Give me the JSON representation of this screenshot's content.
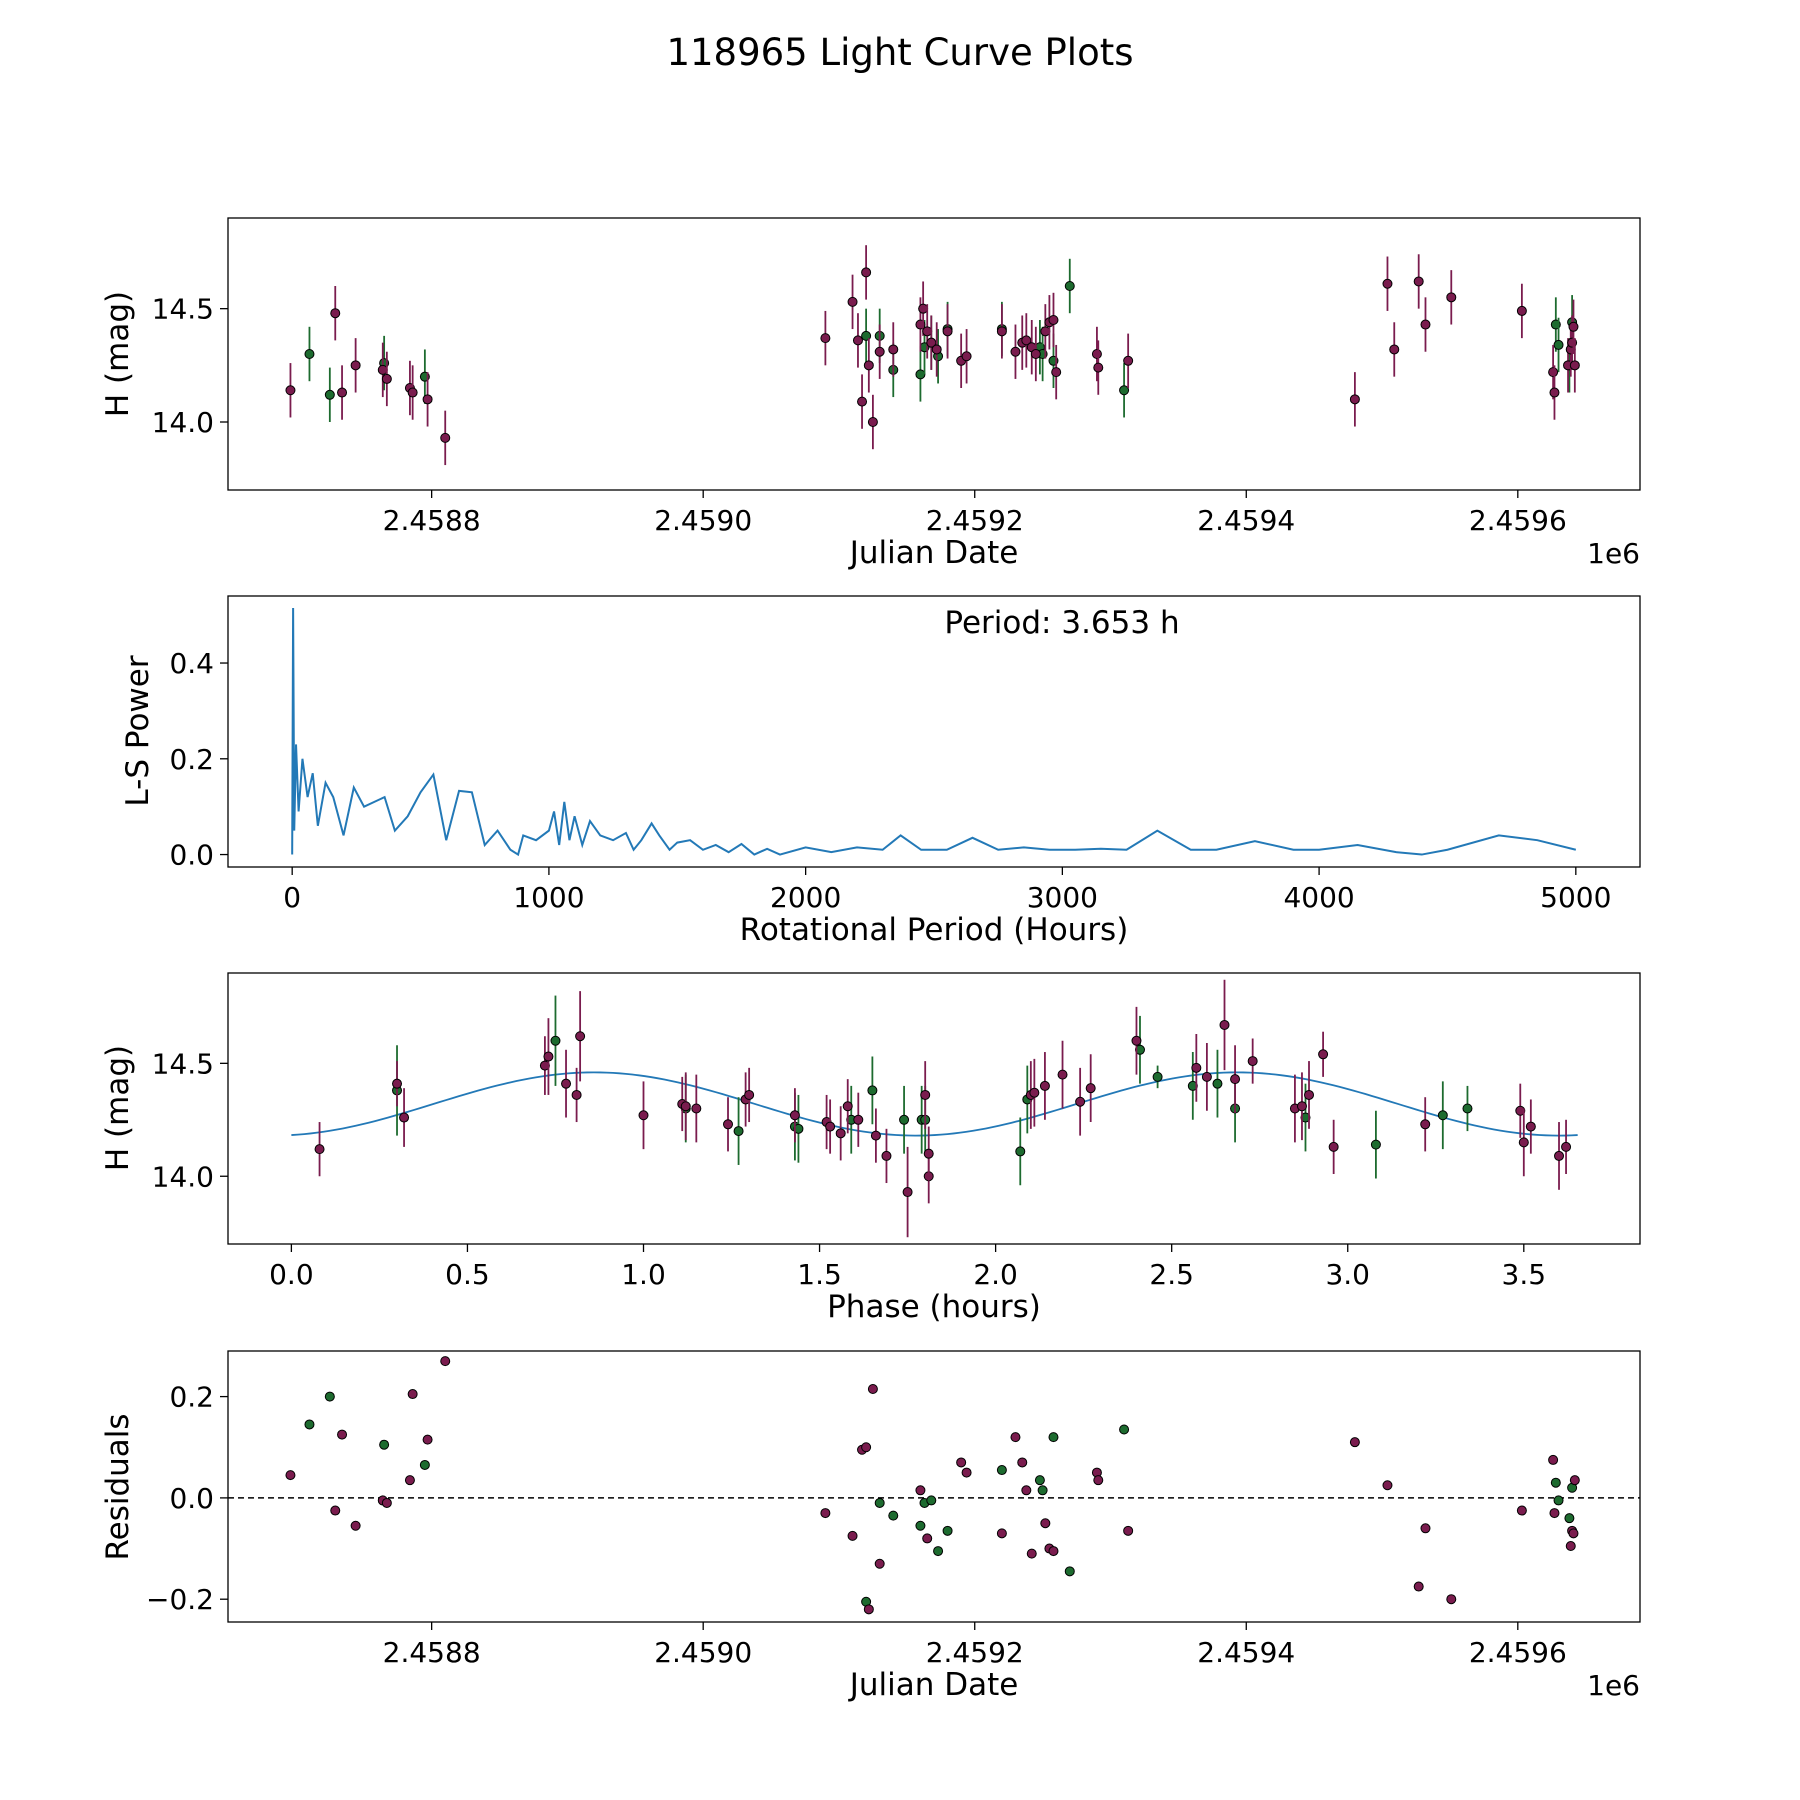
{
  "figure_title": "118965 Light Curve Plots",
  "colors": {
    "g_band": "#1d6b2f",
    "o_band": "#7a1c4e",
    "curve": "#2379b7",
    "dashed": "#000000"
  },
  "chart_data": [
    {
      "id": "lc",
      "type": "scatter",
      "title": "",
      "xlabel": "Julian Date",
      "ylabel": "H (mag)",
      "x_offset_label": "1e6",
      "xlim": [
        2.45865,
        2.45969
      ],
      "ylim": [
        13.7,
        14.9
      ],
      "xticks": [
        2.4588,
        2.459,
        2.4592,
        2.4594,
        2.4596
      ],
      "xtick_labels": [
        "2.4588",
        "2.4590",
        "2.4592",
        "2.4594",
        "2.4596"
      ],
      "yticks": [
        14.0,
        14.5
      ],
      "ytick_labels": [
        "14.0",
        "14.5"
      ],
      "err": 0.12,
      "series": [
        {
          "name": "green",
          "color_key": "g_band",
          "x": [
            2.45871,
            2.458725,
            2.458765,
            2.458795,
            2.45912,
            2.45913,
            2.45914,
            2.45916,
            2.459163,
            2.459168,
            2.459173,
            2.45918,
            2.45922,
            2.459248,
            2.45925,
            2.459258,
            2.45927,
            2.45931,
            2.459628,
            2.45963,
            2.459638,
            2.45964
          ],
          "y": [
            14.3,
            14.12,
            14.26,
            14.2,
            14.38,
            14.38,
            14.23,
            14.21,
            14.33,
            14.35,
            14.29,
            14.41,
            14.41,
            14.33,
            14.3,
            14.27,
            14.6,
            14.14,
            14.43,
            14.34,
            14.25,
            14.44
          ]
        },
        {
          "name": "purple",
          "color_key": "o_band",
          "x": [
            2.458696,
            2.458729,
            2.458734,
            2.458744,
            2.458764,
            2.458767,
            2.458784,
            2.458786,
            2.458797,
            2.45881,
            2.45909,
            2.45911,
            2.459114,
            2.459117,
            2.45912,
            2.459122,
            2.459125,
            2.45913,
            2.45914,
            2.45916,
            2.459162,
            2.459165,
            2.459168,
            2.459172,
            2.45918,
            2.45919,
            2.459194,
            2.45922,
            2.45923,
            2.459235,
            2.459238,
            2.459242,
            2.459245,
            2.459252,
            2.459255,
            2.459258,
            2.45926,
            2.45929,
            2.459291,
            2.459313,
            2.45948,
            2.459504,
            2.459509,
            2.459527,
            2.459532,
            2.459551,
            2.459603,
            2.459626,
            2.459627,
            2.459637,
            2.459639,
            2.45964,
            2.459641,
            2.459642
          ],
          "y": [
            14.14,
            14.48,
            14.13,
            14.25,
            14.23,
            14.19,
            14.15,
            14.13,
            14.1,
            13.93,
            14.37,
            14.53,
            14.36,
            14.09,
            14.66,
            14.25,
            14.0,
            14.31,
            14.32,
            14.43,
            14.5,
            14.4,
            14.35,
            14.32,
            14.4,
            14.27,
            14.29,
            14.4,
            14.31,
            14.35,
            14.36,
            14.33,
            14.3,
            14.4,
            14.44,
            14.45,
            14.22,
            14.3,
            14.24,
            14.27,
            14.1,
            14.61,
            14.32,
            14.62,
            14.43,
            14.55,
            14.49,
            14.22,
            14.13,
            14.25,
            14.32,
            14.35,
            14.42,
            14.25
          ]
        }
      ]
    },
    {
      "id": "ls",
      "type": "line",
      "title": "",
      "xlabel": "Rotational Period (Hours)",
      "ylabel": "L-S Power",
      "annotation": "Period: 3.653 h",
      "xlim": [
        -250,
        5250
      ],
      "ylim": [
        -0.026,
        0.54
      ],
      "xticks": [
        0,
        1000,
        2000,
        3000,
        4000,
        5000
      ],
      "xtick_labels": [
        "0",
        "1000",
        "2000",
        "3000",
        "4000",
        "5000"
      ],
      "yticks": [
        0.0,
        0.2,
        0.4
      ],
      "ytick_labels": [
        "0.0",
        "0.2",
        "0.4"
      ],
      "series": [
        {
          "name": "L-S periodogram",
          "x": [
            0,
            3.6,
            8,
            15,
            25,
            40,
            60,
            80,
            100,
            130,
            160,
            200,
            240,
            280,
            320,
            360,
            400,
            450,
            500,
            550,
            600,
            650,
            700,
            750,
            800,
            850,
            880,
            900,
            950,
            1000,
            1020,
            1040,
            1060,
            1080,
            1100,
            1130,
            1160,
            1200,
            1250,
            1300,
            1330,
            1360,
            1400,
            1430,
            1470,
            1500,
            1550,
            1600,
            1650,
            1700,
            1750,
            1800,
            1850,
            1900,
            2000,
            2100,
            2200,
            2300,
            2370,
            2450,
            2550,
            2650,
            2750,
            2850,
            2950,
            3050,
            3150,
            3250,
            3370,
            3500,
            3600,
            3750,
            3900,
            4000,
            4150,
            4300,
            4400,
            4500,
            4700,
            4850,
            5000
          ],
          "y": [
            0.0,
            0.515,
            0.05,
            0.23,
            0.09,
            0.2,
            0.12,
            0.17,
            0.06,
            0.15,
            0.12,
            0.04,
            0.14,
            0.1,
            0.11,
            0.12,
            0.05,
            0.08,
            0.13,
            0.167,
            0.03,
            0.133,
            0.13,
            0.02,
            0.05,
            0.01,
            0.0,
            0.04,
            0.03,
            0.05,
            0.09,
            0.02,
            0.11,
            0.03,
            0.08,
            0.02,
            0.07,
            0.04,
            0.03,
            0.045,
            0.01,
            0.03,
            0.065,
            0.04,
            0.01,
            0.025,
            0.03,
            0.01,
            0.02,
            0.005,
            0.022,
            0.0,
            0.012,
            0.0,
            0.015,
            0.005,
            0.015,
            0.01,
            0.04,
            0.01,
            0.01,
            0.035,
            0.01,
            0.015,
            0.01,
            0.01,
            0.012,
            0.01,
            0.05,
            0.01,
            0.01,
            0.028,
            0.01,
            0.01,
            0.02,
            0.005,
            0.0,
            0.01,
            0.04,
            0.03,
            0.01
          ]
        }
      ]
    },
    {
      "id": "phase",
      "type": "scatter",
      "title": "",
      "xlabel": "Phase (hours)",
      "ylabel": "H (mag)",
      "xlim": [
        -0.18,
        3.83
      ],
      "ylim": [
        13.7,
        14.9
      ],
      "xticks": [
        0.0,
        0.5,
        1.0,
        1.5,
        2.0,
        2.5,
        3.0,
        3.5
      ],
      "xtick_labels": [
        "0.0",
        "0.5",
        "1.0",
        "1.5",
        "2.0",
        "2.5",
        "3.0",
        "3.5"
      ],
      "yticks": [
        14.0,
        14.5
      ],
      "ytick_labels": [
        "14.0",
        "14.5"
      ],
      "err": 0.12,
      "fit": {
        "period": 3.653,
        "mean": 14.32,
        "amp": 0.14,
        "phase_offset": 0.86
      },
      "series": [
        {
          "name": "green",
          "color_key": "g_band",
          "x": [
            0.3,
            0.75,
            1.12,
            1.27,
            1.43,
            1.44,
            1.59,
            1.65,
            1.74,
            1.79,
            1.8,
            2.07,
            2.09,
            2.41,
            2.46,
            2.56,
            2.63,
            2.68,
            2.88,
            3.08,
            3.27,
            3.34
          ],
          "y": [
            14.38,
            14.6,
            14.3,
            14.2,
            14.22,
            14.21,
            14.25,
            14.38,
            14.25,
            14.25,
            14.25,
            14.11,
            14.34,
            14.56,
            14.44,
            14.4,
            14.41,
            14.3,
            14.26,
            14.14,
            14.27,
            14.3
          ],
          "err": [
            0.2,
            0.2,
            0.15,
            0.15,
            0.15,
            0.15,
            0.15,
            0.15,
            0.15,
            0.15,
            0.15,
            0.15,
            0.15,
            0.15,
            0.05,
            0.15,
            0.15,
            0.15,
            0.15,
            0.15,
            0.15,
            0.1
          ]
        },
        {
          "name": "purple",
          "color_key": "o_band",
          "x": [
            0.08,
            0.3,
            0.32,
            0.72,
            0.73,
            0.78,
            0.81,
            0.82,
            1.0,
            1.11,
            1.12,
            1.15,
            1.24,
            1.29,
            1.3,
            1.43,
            1.52,
            1.53,
            1.56,
            1.58,
            1.61,
            1.66,
            1.69,
            1.75,
            1.8,
            1.81,
            1.81,
            2.1,
            2.11,
            2.14,
            2.19,
            2.24,
            2.27,
            2.4,
            2.57,
            2.6,
            2.65,
            2.68,
            2.73,
            2.85,
            2.87,
            2.89,
            2.93,
            2.96,
            3.22,
            3.49,
            3.5,
            3.52,
            3.6,
            3.62
          ],
          "y": [
            14.12,
            14.41,
            14.26,
            14.49,
            14.53,
            14.41,
            14.36,
            14.62,
            14.27,
            14.32,
            14.31,
            14.3,
            14.23,
            14.34,
            14.36,
            14.27,
            14.24,
            14.22,
            14.19,
            14.31,
            14.25,
            14.18,
            14.09,
            13.93,
            14.36,
            14.0,
            14.1,
            14.36,
            14.37,
            14.4,
            14.45,
            14.33,
            14.39,
            14.6,
            14.48,
            14.44,
            14.67,
            14.43,
            14.51,
            14.3,
            14.31,
            14.36,
            14.54,
            14.13,
            14.23,
            14.29,
            14.15,
            14.22,
            14.09,
            14.13
          ],
          "err": [
            0.12,
            0.1,
            0.13,
            0.13,
            0.17,
            0.15,
            0.12,
            0.2,
            0.15,
            0.12,
            0.15,
            0.15,
            0.12,
            0.12,
            0.12,
            0.12,
            0.12,
            0.12,
            0.12,
            0.12,
            0.12,
            0.12,
            0.12,
            0.2,
            0.15,
            0.12,
            0.12,
            0.15,
            0.15,
            0.15,
            0.15,
            0.15,
            0.15,
            0.15,
            0.15,
            0.15,
            0.2,
            0.15,
            0.1,
            0.15,
            0.15,
            0.15,
            0.1,
            0.12,
            0.12,
            0.12,
            0.15,
            0.12,
            0.15,
            0.12
          ]
        }
      ]
    },
    {
      "id": "res",
      "type": "scatter",
      "title": "",
      "xlabel": "Julian Date",
      "ylabel": "Residuals",
      "x_offset_label": "1e6",
      "xlim": [
        2.45865,
        2.45969
      ],
      "ylim": [
        -0.245,
        0.29
      ],
      "xticks": [
        2.4588,
        2.459,
        2.4592,
        2.4594,
        2.4596
      ],
      "xtick_labels": [
        "2.4588",
        "2.4590",
        "2.4592",
        "2.4594",
        "2.4596"
      ],
      "yticks": [
        -0.2,
        0.0,
        0.2
      ],
      "ytick_labels": [
        "−0.2",
        "0.0",
        "0.2"
      ],
      "zero_line": 0.0,
      "series": [
        {
          "name": "green",
          "color_key": "g_band",
          "x": [
            2.45871,
            2.458725,
            2.458765,
            2.458795,
            2.45912,
            2.45913,
            2.45914,
            2.45916,
            2.459163,
            2.459168,
            2.459173,
            2.45918,
            2.45922,
            2.459248,
            2.45925,
            2.459258,
            2.45927,
            2.45931,
            2.459628,
            2.45963,
            2.459638,
            2.45964
          ],
          "y": [
            0.145,
            0.2,
            0.105,
            0.065,
            -0.205,
            -0.01,
            -0.035,
            -0.055,
            -0.01,
            -0.005,
            -0.105,
            -0.065,
            0.055,
            0.035,
            0.015,
            0.12,
            -0.145,
            0.135,
            0.03,
            -0.005,
            -0.04,
            0.02
          ]
        },
        {
          "name": "purple",
          "color_key": "o_band",
          "x": [
            2.458696,
            2.458729,
            2.458734,
            2.458744,
            2.458764,
            2.458767,
            2.458784,
            2.458786,
            2.458797,
            2.45881,
            2.45909,
            2.45911,
            2.459117,
            2.45912,
            2.459122,
            2.459125,
            2.45913,
            2.45916,
            2.459165,
            2.45919,
            2.459194,
            2.45922,
            2.45923,
            2.459235,
            2.459238,
            2.459242,
            2.459252,
            2.459255,
            2.459258,
            2.45929,
            2.459291,
            2.459313,
            2.45948,
            2.459504,
            2.459527,
            2.459532,
            2.459551,
            2.459603,
            2.459626,
            2.459627,
            2.459639,
            2.45964,
            2.459641,
            2.459642
          ],
          "y": [
            0.045,
            -0.025,
            0.125,
            -0.055,
            -0.005,
            -0.01,
            0.035,
            0.205,
            0.115,
            0.27,
            -0.03,
            -0.075,
            0.095,
            0.1,
            -0.22,
            0.215,
            -0.13,
            0.015,
            -0.08,
            0.07,
            0.05,
            -0.07,
            0.12,
            0.07,
            0.015,
            -0.11,
            -0.05,
            -0.1,
            -0.105,
            0.05,
            0.035,
            -0.065,
            0.11,
            0.025,
            -0.175,
            -0.06,
            -0.2,
            -0.025,
            0.075,
            -0.03,
            -0.095,
            -0.065,
            -0.07,
            0.035
          ]
        }
      ]
    }
  ]
}
